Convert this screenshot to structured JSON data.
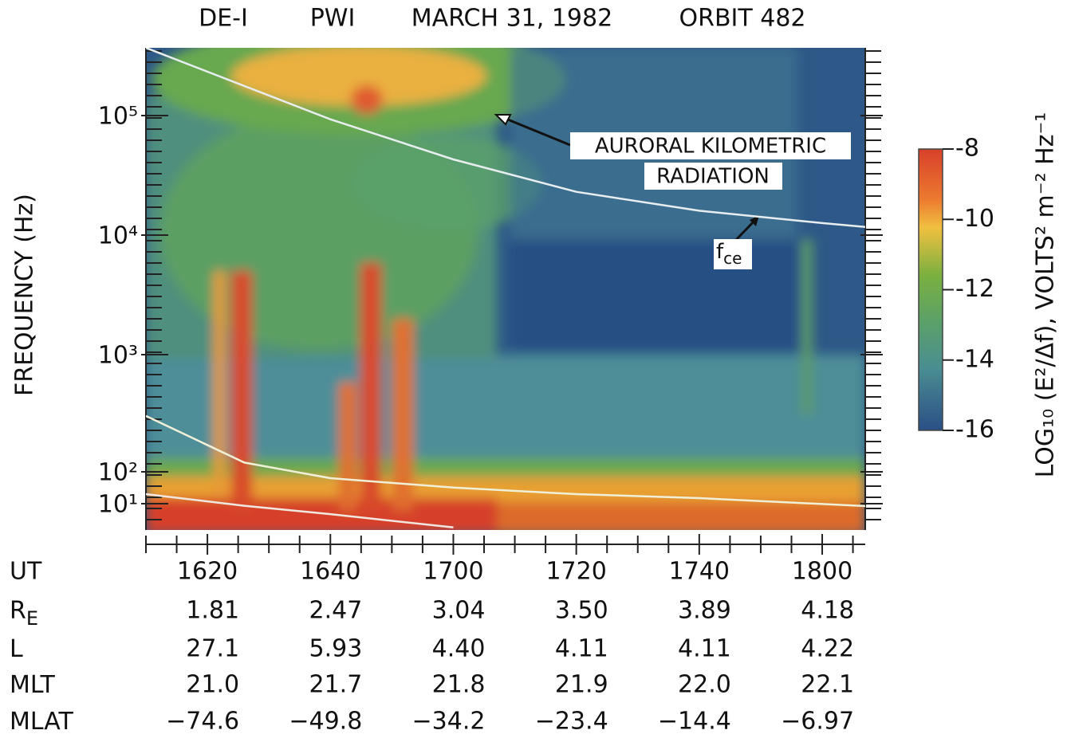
{
  "chart_data": {
    "type": "spectrogram",
    "title_parts": [
      "DE-I",
      "PWI",
      "MARCH 31, 1982",
      "ORBIT 482"
    ],
    "y_label": "FREQUENCY (Hz)",
    "log_y": true,
    "ylim": [
      1.5,
      370000
    ],
    "yticks": [
      {
        "value": 10,
        "label": "10¹"
      },
      {
        "value": 100,
        "label": "10²"
      },
      {
        "value": 1000,
        "label": "10³"
      },
      {
        "value": 10000,
        "label": "10⁴"
      },
      {
        "value": 100000,
        "label": "10⁵"
      }
    ],
    "xlim": [
      970,
      1087
    ],
    "x_label": "UT",
    "xticks": [
      {
        "value": 980,
        "label": "1620"
      },
      {
        "value": 1000,
        "label": "1640"
      },
      {
        "value": 1020,
        "label": "1700"
      },
      {
        "value": 1040,
        "label": "1720"
      },
      {
        "value": 1060,
        "label": "1740"
      },
      {
        "value": 1080,
        "label": "1800"
      }
    ],
    "xminorticks": [
      970,
      975,
      985,
      990,
      995,
      1005,
      1010,
      1015,
      1025,
      1030,
      1035,
      1045,
      1050,
      1055,
      1065,
      1070,
      1075,
      1085
    ],
    "curves": [
      {
        "color": "#e8eef0",
        "x": [
          970,
          1000,
          1020,
          1040,
          1060,
          1080,
          1087
        ],
        "values": [
          370000,
          93000,
          43000,
          23000,
          16000,
          12600,
          11700
        ]
      },
      {
        "color": "#f0f0d8",
        "x": [
          970,
          986,
          1000,
          1020,
          1040,
          1060,
          1087
        ],
        "values": [
          300,
          120,
          63,
          32,
          20,
          15,
          8.4
        ]
      },
      {
        "color": "#f0e8e0",
        "x": [
          970,
          986,
          1000,
          1020
        ],
        "values": [
          20,
          8.6,
          4.7,
          1.8
        ]
      }
    ],
    "colorbar": {
      "label": "LOG₁₀ (E²/Δf), VOLTS² m⁻² Hz⁻¹",
      "lim": [
        -16,
        -8
      ],
      "ticks": [
        -8,
        -10,
        -12,
        -14,
        -16
      ]
    },
    "annotations": {
      "akr": [
        "AURORAL KILOMETRIC",
        "RADIATION"
      ],
      "fce": {
        "base": "f",
        "sub": "ce"
      }
    },
    "ephemeris": [
      {
        "label": "R",
        "sub": "E",
        "values": [
          "1.81",
          "2.47",
          "3.04",
          "3.50",
          "3.89",
          "4.18"
        ]
      },
      {
        "label": "L",
        "values": [
          "27.1",
          "5.93",
          "4.40",
          "4.11",
          "4.11",
          "4.22"
        ]
      },
      {
        "label": "MLT",
        "values": [
          "21.0",
          "21.7",
          "21.8",
          "21.9",
          "22.0",
          "22.1"
        ]
      },
      {
        "label": "MLAT",
        "values": [
          "−74.6",
          "−49.8",
          "−34.2",
          "−23.4",
          "−14.4",
          "−6.97"
        ]
      }
    ]
  }
}
